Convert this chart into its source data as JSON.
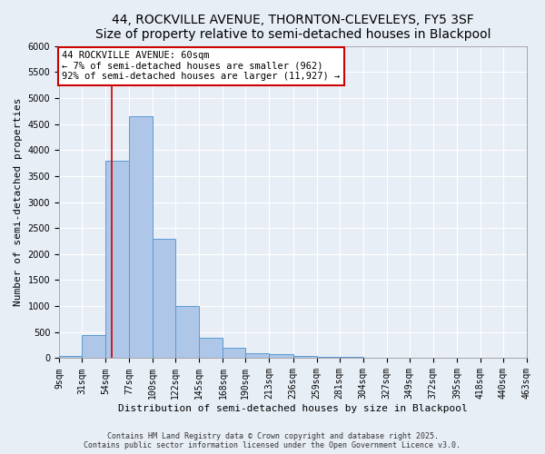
{
  "title": "44, ROCKVILLE AVENUE, THORNTON-CLEVELEYS, FY5 3SF",
  "subtitle": "Size of property relative to semi-detached houses in Blackpool",
  "xlabel": "Distribution of semi-detached houses by size in Blackpool",
  "ylabel": "Number of semi-detached properties",
  "bin_labels": [
    "9sqm",
    "31sqm",
    "54sqm",
    "77sqm",
    "100sqm",
    "122sqm",
    "145sqm",
    "168sqm",
    "190sqm",
    "213sqm",
    "236sqm",
    "259sqm",
    "281sqm",
    "304sqm",
    "327sqm",
    "349sqm",
    "372sqm",
    "395sqm",
    "418sqm",
    "440sqm",
    "463sqm"
  ],
  "bin_edges": [
    9,
    31,
    54,
    77,
    100,
    122,
    145,
    168,
    190,
    213,
    236,
    259,
    281,
    304,
    327,
    349,
    372,
    395,
    418,
    440,
    463
  ],
  "bar_heights": [
    50,
    450,
    3800,
    4650,
    2300,
    1000,
    400,
    200,
    100,
    70,
    50,
    30,
    20,
    15,
    10,
    8,
    5,
    3,
    2,
    1
  ],
  "bar_color": "#aec6e8",
  "bar_edge_color": "#5b9bd5",
  "property_size": 60,
  "red_line_color": "#cc0000",
  "annotation_text": "44 ROCKVILLE AVENUE: 60sqm\n← 7% of semi-detached houses are smaller (962)\n92% of semi-detached houses are larger (11,927) →",
  "annotation_box_color": "#ffffff",
  "annotation_border_color": "#cc0000",
  "ylim": [
    0,
    6000
  ],
  "yticks": [
    0,
    500,
    1000,
    1500,
    2000,
    2500,
    3000,
    3500,
    4000,
    4500,
    5000,
    5500,
    6000
  ],
  "title_fontsize": 10,
  "xlabel_fontsize": 8,
  "ylabel_fontsize": 8,
  "tick_fontsize": 7,
  "annot_fontsize": 7.5,
  "footer_text": "Contains HM Land Registry data © Crown copyright and database right 2025.\nContains public sector information licensed under the Open Government Licence v3.0.",
  "footer_fontsize": 6,
  "bg_color": "#e8eef6",
  "grid_color": "#ffffff"
}
